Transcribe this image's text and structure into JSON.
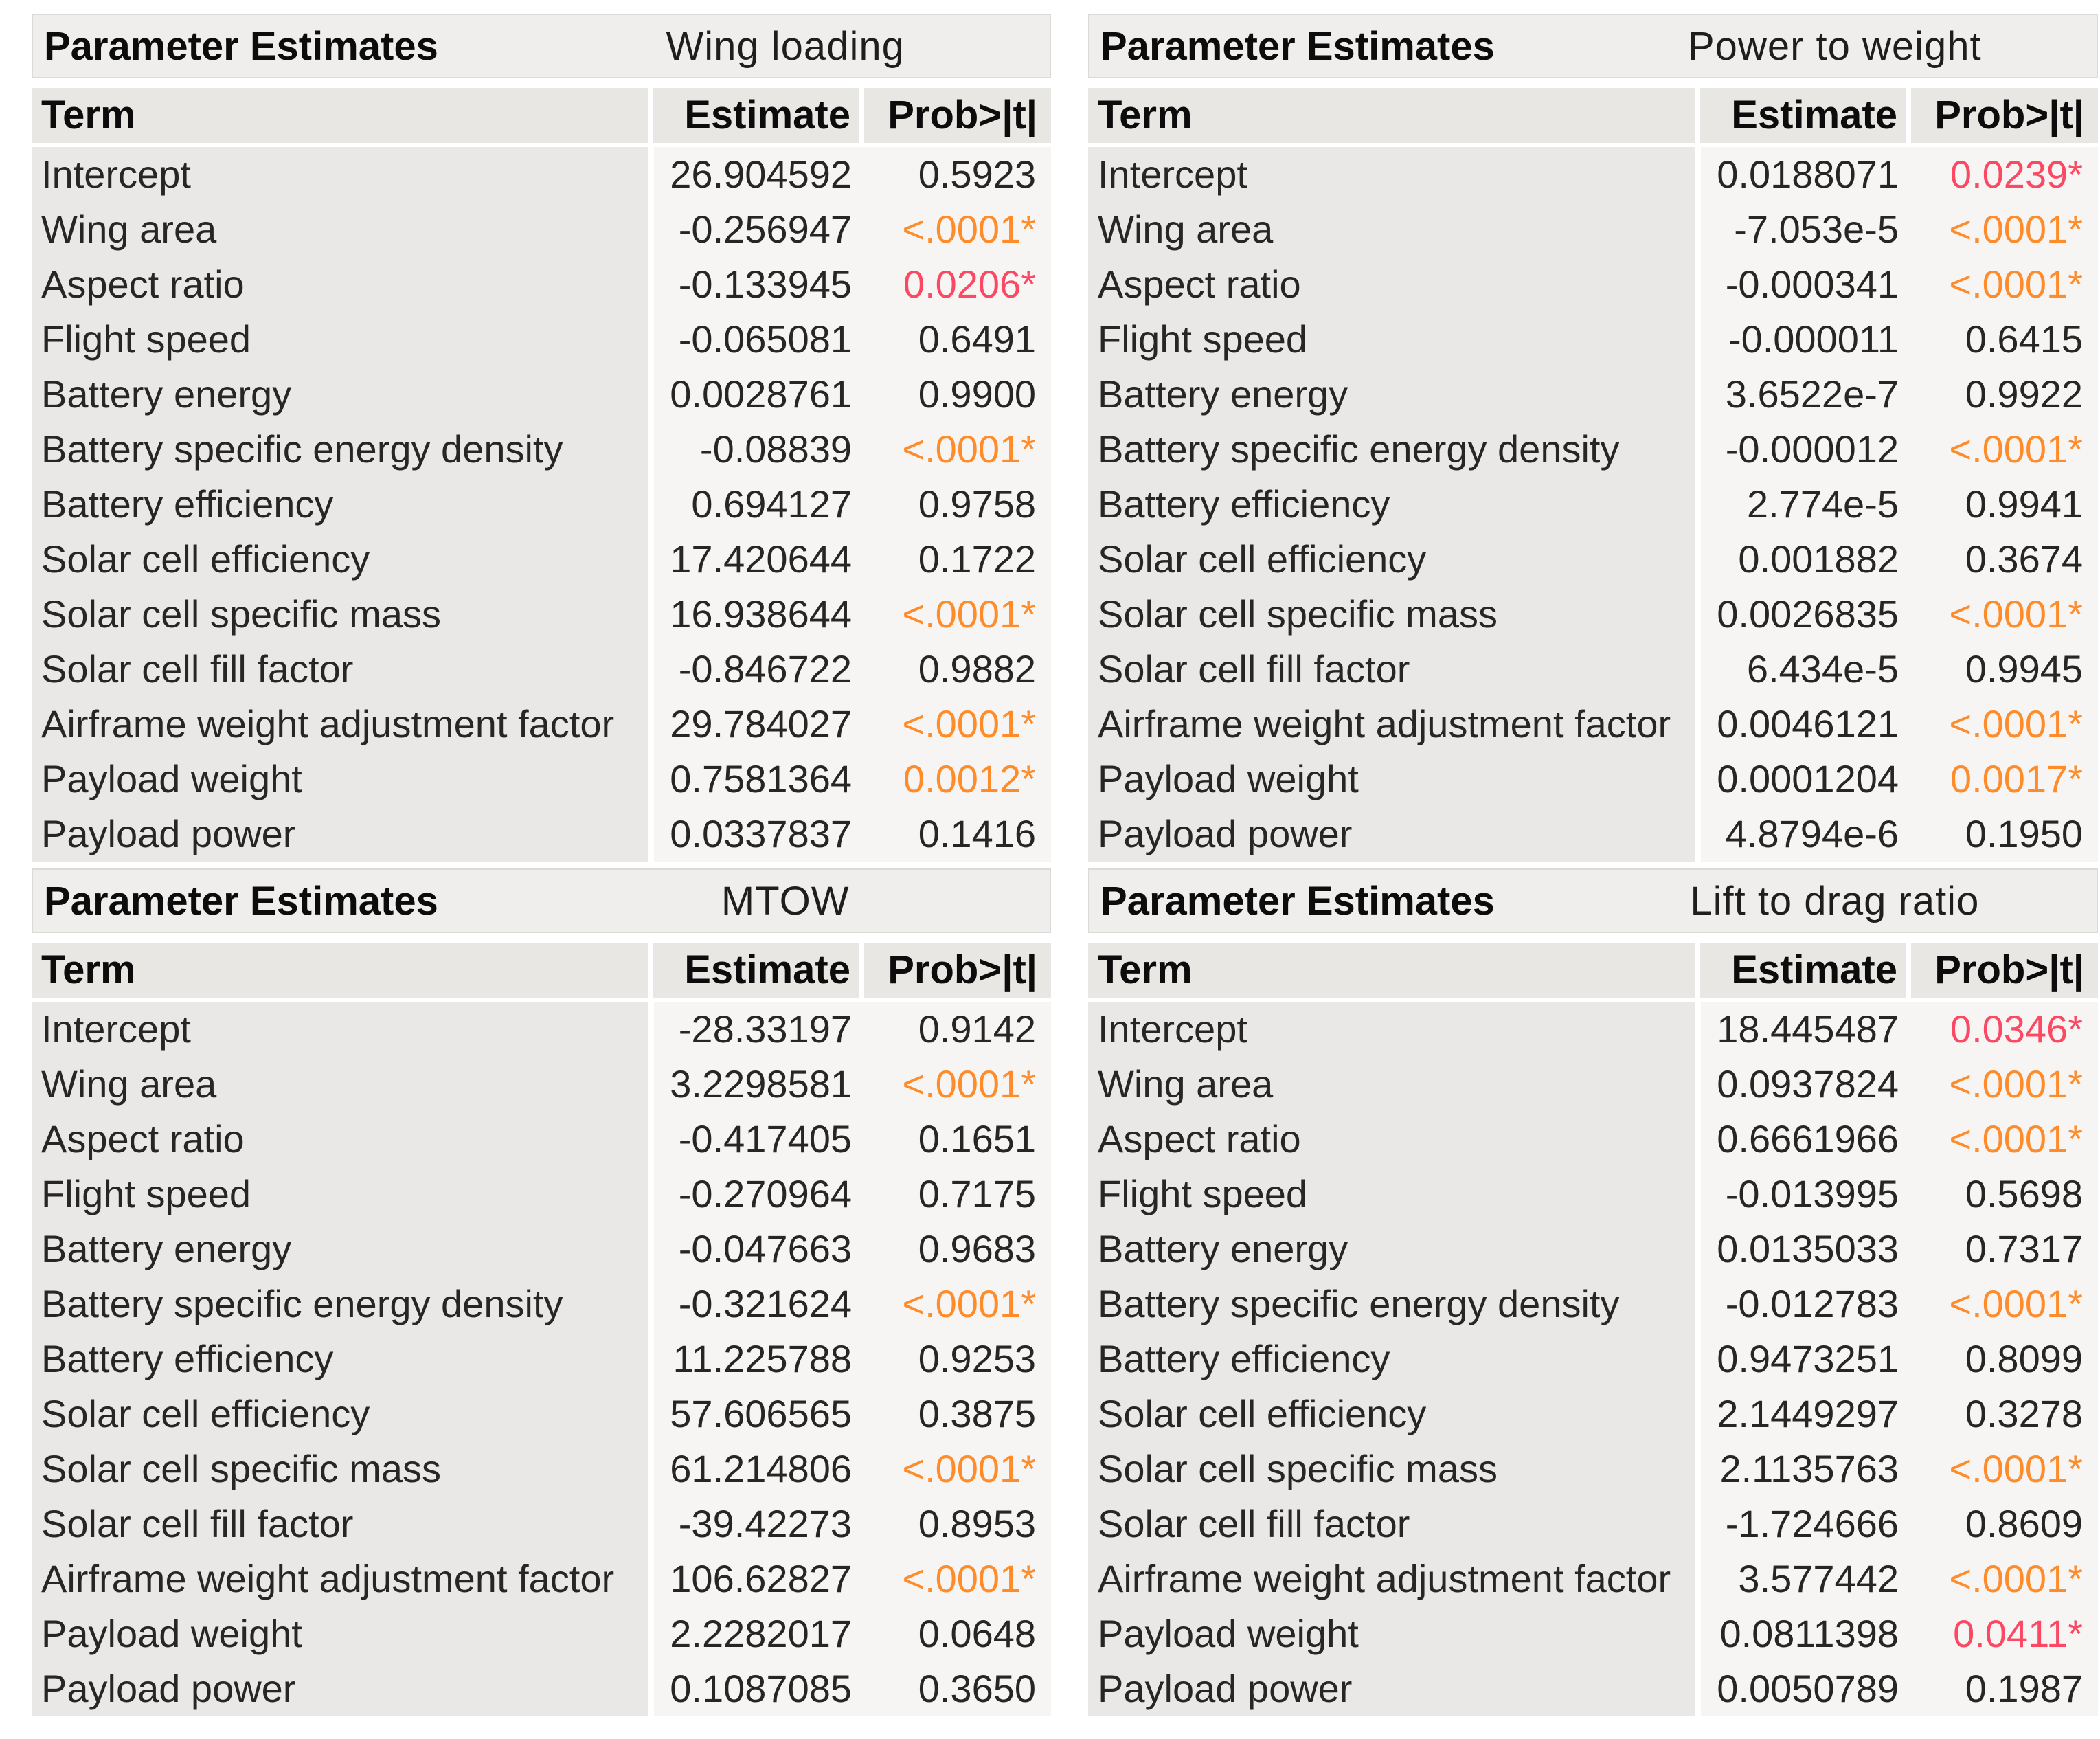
{
  "colors": {
    "significant_strong": "#ff8c2b",
    "significant_weak": "#fb4963",
    "text": "#262626"
  },
  "columns": {
    "term": "Term",
    "estimate": "Estimate",
    "prob": "Prob>|t|"
  },
  "tables": [
    {
      "title": "Parameter Estimates",
      "response": "Wing loading",
      "rows": [
        {
          "term": "Intercept",
          "estimate": "26.904592",
          "prob": "0.5923",
          "sig": "none"
        },
        {
          "term": "Wing area",
          "estimate": "-0.256947",
          "prob": "<.0001*",
          "sig": "strong"
        },
        {
          "term": "Aspect ratio",
          "estimate": "-0.133945",
          "prob": "0.0206*",
          "sig": "weak"
        },
        {
          "term": "Flight speed",
          "estimate": "-0.065081",
          "prob": "0.6491",
          "sig": "none"
        },
        {
          "term": "Battery energy",
          "estimate": "0.0028761",
          "prob": "0.9900",
          "sig": "none"
        },
        {
          "term": "Battery specific energy density",
          "estimate": "-0.08839",
          "prob": "<.0001*",
          "sig": "strong"
        },
        {
          "term": "Battery efficiency",
          "estimate": "0.694127",
          "prob": "0.9758",
          "sig": "none"
        },
        {
          "term": "Solar cell efficiency",
          "estimate": "17.420644",
          "prob": "0.1722",
          "sig": "none"
        },
        {
          "term": "Solar cell specific mass",
          "estimate": "16.938644",
          "prob": "<.0001*",
          "sig": "strong"
        },
        {
          "term": "Solar cell fill factor",
          "estimate": "-0.846722",
          "prob": "0.9882",
          "sig": "none"
        },
        {
          "term": "Airframe weight adjustment factor",
          "estimate": "29.784027",
          "prob": "<.0001*",
          "sig": "strong"
        },
        {
          "term": "Payload weight",
          "estimate": "0.7581364",
          "prob": "0.0012*",
          "sig": "strong"
        },
        {
          "term": "Payload power",
          "estimate": "0.0337837",
          "prob": "0.1416",
          "sig": "none"
        }
      ]
    },
    {
      "title": "Parameter Estimates",
      "response": "Power to weight",
      "rows": [
        {
          "term": "Intercept",
          "estimate": "0.0188071",
          "prob": "0.0239*",
          "sig": "weak"
        },
        {
          "term": "Wing area",
          "estimate": "-7.053e-5",
          "prob": "<.0001*",
          "sig": "strong"
        },
        {
          "term": "Aspect ratio",
          "estimate": "-0.000341",
          "prob": "<.0001*",
          "sig": "strong"
        },
        {
          "term": "Flight speed",
          "estimate": "-0.000011",
          "prob": "0.6415",
          "sig": "none"
        },
        {
          "term": "Battery energy",
          "estimate": "3.6522e-7",
          "prob": "0.9922",
          "sig": "none"
        },
        {
          "term": "Battery specific energy density",
          "estimate": "-0.000012",
          "prob": "<.0001*",
          "sig": "strong"
        },
        {
          "term": "Battery efficiency",
          "estimate": "2.774e-5",
          "prob": "0.9941",
          "sig": "none"
        },
        {
          "term": "Solar cell efficiency",
          "estimate": "0.001882",
          "prob": "0.3674",
          "sig": "none"
        },
        {
          "term": "Solar cell specific mass",
          "estimate": "0.0026835",
          "prob": "<.0001*",
          "sig": "strong"
        },
        {
          "term": "Solar cell fill factor",
          "estimate": "6.434e-5",
          "prob": "0.9945",
          "sig": "none"
        },
        {
          "term": "Airframe weight adjustment factor",
          "estimate": "0.0046121",
          "prob": "<.0001*",
          "sig": "strong"
        },
        {
          "term": "Payload weight",
          "estimate": "0.0001204",
          "prob": "0.0017*",
          "sig": "strong"
        },
        {
          "term": "Payload power",
          "estimate": "4.8794e-6",
          "prob": "0.1950",
          "sig": "none"
        }
      ]
    },
    {
      "title": "Parameter Estimates",
      "response": "MTOW",
      "rows": [
        {
          "term": "Intercept",
          "estimate": "-28.33197",
          "prob": "0.9142",
          "sig": "none"
        },
        {
          "term": "Wing area",
          "estimate": "3.2298581",
          "prob": "<.0001*",
          "sig": "strong"
        },
        {
          "term": "Aspect ratio",
          "estimate": "-0.417405",
          "prob": "0.1651",
          "sig": "none"
        },
        {
          "term": "Flight speed",
          "estimate": "-0.270964",
          "prob": "0.7175",
          "sig": "none"
        },
        {
          "term": "Battery energy",
          "estimate": "-0.047663",
          "prob": "0.9683",
          "sig": "none"
        },
        {
          "term": "Battery specific energy density",
          "estimate": "-0.321624",
          "prob": "<.0001*",
          "sig": "strong"
        },
        {
          "term": "Battery efficiency",
          "estimate": "11.225788",
          "prob": "0.9253",
          "sig": "none"
        },
        {
          "term": "Solar cell efficiency",
          "estimate": "57.606565",
          "prob": "0.3875",
          "sig": "none"
        },
        {
          "term": "Solar cell specific mass",
          "estimate": "61.214806",
          "prob": "<.0001*",
          "sig": "strong"
        },
        {
          "term": "Solar cell fill factor",
          "estimate": "-39.42273",
          "prob": "0.8953",
          "sig": "none"
        },
        {
          "term": "Airframe weight adjustment factor",
          "estimate": "106.62827",
          "prob": "<.0001*",
          "sig": "strong"
        },
        {
          "term": "Payload weight",
          "estimate": "2.2282017",
          "prob": "0.0648",
          "sig": "none"
        },
        {
          "term": "Payload power",
          "estimate": "0.1087085",
          "prob": "0.3650",
          "sig": "none"
        }
      ]
    },
    {
      "title": "Parameter Estimates",
      "response": "Lift to drag ratio",
      "rows": [
        {
          "term": "Intercept",
          "estimate": "18.445487",
          "prob": "0.0346*",
          "sig": "weak"
        },
        {
          "term": "Wing area",
          "estimate": "0.0937824",
          "prob": "<.0001*",
          "sig": "strong"
        },
        {
          "term": "Aspect ratio",
          "estimate": "0.6661966",
          "prob": "<.0001*",
          "sig": "strong"
        },
        {
          "term": "Flight speed",
          "estimate": "-0.013995",
          "prob": "0.5698",
          "sig": "none"
        },
        {
          "term": "Battery energy",
          "estimate": "0.0135033",
          "prob": "0.7317",
          "sig": "none"
        },
        {
          "term": "Battery specific energy density",
          "estimate": "-0.012783",
          "prob": "<.0001*",
          "sig": "strong"
        },
        {
          "term": "Battery efficiency",
          "estimate": "0.9473251",
          "prob": "0.8099",
          "sig": "none"
        },
        {
          "term": "Solar cell efficiency",
          "estimate": "2.1449297",
          "prob": "0.3278",
          "sig": "none"
        },
        {
          "term": "Solar cell specific mass",
          "estimate": "2.1135763",
          "prob": "<.0001*",
          "sig": "strong"
        },
        {
          "term": "Solar cell fill factor",
          "estimate": "-1.724666",
          "prob": "0.8609",
          "sig": "none"
        },
        {
          "term": "Airframe weight adjustment factor",
          "estimate": "3.577442",
          "prob": "<.0001*",
          "sig": "strong"
        },
        {
          "term": "Payload weight",
          "estimate": "0.0811398",
          "prob": "0.0411*",
          "sig": "weak"
        },
        {
          "term": "Payload power",
          "estimate": "0.0050789",
          "prob": "0.1987",
          "sig": "none"
        }
      ]
    }
  ]
}
